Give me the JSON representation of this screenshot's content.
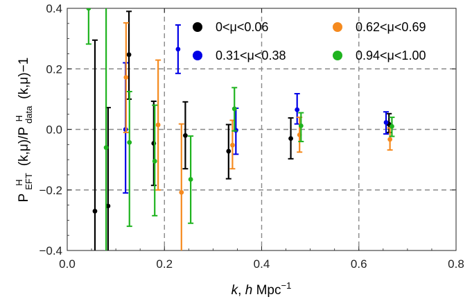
{
  "chart_data": {
    "type": "scatter",
    "xlabel": "k, h Mpc⁻¹",
    "ylabel": {
      "prefix": "P",
      "sub1": "EFT",
      "sup1": "H",
      "mid": "(k,μ)/P",
      "sub2": "data",
      "sup2": "H",
      "suffix": "(k,μ)−1"
    },
    "xlim": [
      0.0,
      0.8
    ],
    "ylim": [
      -0.4,
      0.4
    ],
    "x_ticks": [
      0.0,
      0.2,
      0.4,
      0.6,
      0.8
    ],
    "x_tick_labels": [
      "0.0",
      "0.2",
      "0.4",
      "0.6",
      "0.8"
    ],
    "y_ticks": [
      -0.4,
      -0.2,
      0.0,
      0.2,
      0.4
    ],
    "y_tick_labels": [
      "−0.4",
      "−0.2",
      "0.0",
      "0.2",
      "0.4"
    ],
    "grid": "dashed at major ticks",
    "legend_placement": "top-right",
    "series": [
      {
        "name": "0<μ<0.06",
        "color": "#000000",
        "points": [
          {
            "x": 0.057,
            "y": -0.27,
            "lo": -0.42,
            "hi": 0.295
          },
          {
            "x": 0.084,
            "y": -0.253,
            "lo": -0.42,
            "hi": 0.072
          },
          {
            "x": 0.127,
            "y": 0.247,
            "lo": 0.1,
            "hi": 0.39
          },
          {
            "x": 0.178,
            "y": -0.046,
            "lo": -0.185,
            "hi": 0.093
          },
          {
            "x": 0.243,
            "y": -0.02,
            "lo": -0.13,
            "hi": 0.091
          },
          {
            "x": 0.332,
            "y": -0.072,
            "lo": -0.163,
            "hi": 0.016
          },
          {
            "x": 0.46,
            "y": -0.03,
            "lo": -0.097,
            "hi": 0.038
          },
          {
            "x": 0.662,
            "y": 0.017,
            "lo": -0.01,
            "hi": 0.052
          }
        ]
      },
      {
        "name": "0.31<μ<0.38",
        "color": "#0000e6",
        "points": [
          {
            "x": 0.12,
            "y": 0.0,
            "lo": -0.21,
            "hi": 0.22
          },
          {
            "x": 0.228,
            "y": 0.265,
            "lo": 0.185,
            "hi": 0.345
          },
          {
            "x": 0.347,
            "y": -0.003,
            "lo": -0.082,
            "hi": 0.07
          },
          {
            "x": 0.473,
            "y": 0.065,
            "lo": 0.018,
            "hi": 0.118
          },
          {
            "x": 0.656,
            "y": 0.023,
            "lo": -0.015,
            "hi": 0.058
          }
        ]
      },
      {
        "name": "0.62<μ<0.69",
        "color": "#f58a1f",
        "points": [
          {
            "x": 0.121,
            "y": 0.172,
            "lo": -0.01,
            "hi": 0.352
          },
          {
            "x": 0.187,
            "y": 0.015,
            "lo": -0.2,
            "hi": 0.229
          },
          {
            "x": 0.235,
            "y": -0.208,
            "lo": -0.42,
            "hi": 0.018
          },
          {
            "x": 0.34,
            "y": -0.052,
            "lo": -0.13,
            "hi": 0.03
          },
          {
            "x": 0.478,
            "y": -0.018,
            "lo": -0.075,
            "hi": 0.04
          },
          {
            "x": 0.664,
            "y": -0.033,
            "lo": -0.068,
            "hi": 0.005
          }
        ]
      },
      {
        "name": "0.94<μ<1.00",
        "color": "#1fb31f",
        "points": [
          {
            "x": 0.044,
            "y": 0.4,
            "lo": 0.282,
            "hi": 0.42
          },
          {
            "x": 0.08,
            "y": -0.06,
            "lo": -0.42,
            "hi": 0.42
          },
          {
            "x": 0.128,
            "y": -0.043,
            "lo": -0.32,
            "hi": 0.125
          },
          {
            "x": 0.18,
            "y": -0.105,
            "lo": -0.285,
            "hi": 0.08
          },
          {
            "x": 0.254,
            "y": -0.165,
            "lo": -0.31,
            "hi": -0.022
          },
          {
            "x": 0.344,
            "y": 0.068,
            "lo": -0.005,
            "hi": 0.138
          },
          {
            "x": 0.481,
            "y": 0.012,
            "lo": -0.04,
            "hi": 0.055
          },
          {
            "x": 0.668,
            "y": 0.01,
            "lo": -0.023,
            "hi": 0.04
          }
        ]
      }
    ]
  }
}
